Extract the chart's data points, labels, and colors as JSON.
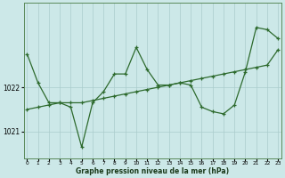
{
  "title": "Graphe pression niveau de la mer (hPa)",
  "bg_color": "#cce8e8",
  "line_color": "#2d6a2d",
  "grid_color": "#aacccc",
  "x_ticks": [
    0,
    1,
    2,
    3,
    4,
    5,
    6,
    7,
    8,
    9,
    10,
    11,
    12,
    13,
    14,
    15,
    16,
    17,
    18,
    19,
    20,
    21,
    22,
    23
  ],
  "y_ticks": [
    1021,
    1022
  ],
  "ylim": [
    1020.4,
    1023.9
  ],
  "xlim": [
    -0.3,
    23.3
  ],
  "series1_x": [
    0,
    1,
    2,
    3,
    4,
    5,
    6,
    7,
    8,
    9,
    10,
    11,
    12,
    13,
    14,
    15,
    16,
    17,
    18,
    19,
    20,
    21,
    22,
    23
  ],
  "series1_y": [
    1022.75,
    1022.1,
    1021.65,
    1021.65,
    1021.55,
    1020.65,
    1021.65,
    1021.9,
    1022.3,
    1022.3,
    1022.9,
    1022.4,
    1022.05,
    1022.05,
    1022.1,
    1022.05,
    1021.55,
    1021.45,
    1021.4,
    1021.6,
    1022.35,
    1023.35,
    1023.3,
    1023.1
  ],
  "series2_x": [
    0,
    1,
    2,
    3,
    4,
    5,
    6,
    7,
    8,
    9,
    10,
    11,
    12,
    13,
    14,
    15,
    16,
    17,
    18,
    19,
    20,
    21,
    22,
    23
  ],
  "series2_y": [
    1021.5,
    1021.55,
    1021.6,
    1021.65,
    1021.65,
    1021.65,
    1021.7,
    1021.75,
    1021.8,
    1021.85,
    1021.9,
    1021.95,
    1022.0,
    1022.05,
    1022.1,
    1022.15,
    1022.2,
    1022.25,
    1022.3,
    1022.35,
    1022.4,
    1022.45,
    1022.5,
    1022.85
  ],
  "figwidth": 3.2,
  "figheight": 2.0,
  "dpi": 100
}
